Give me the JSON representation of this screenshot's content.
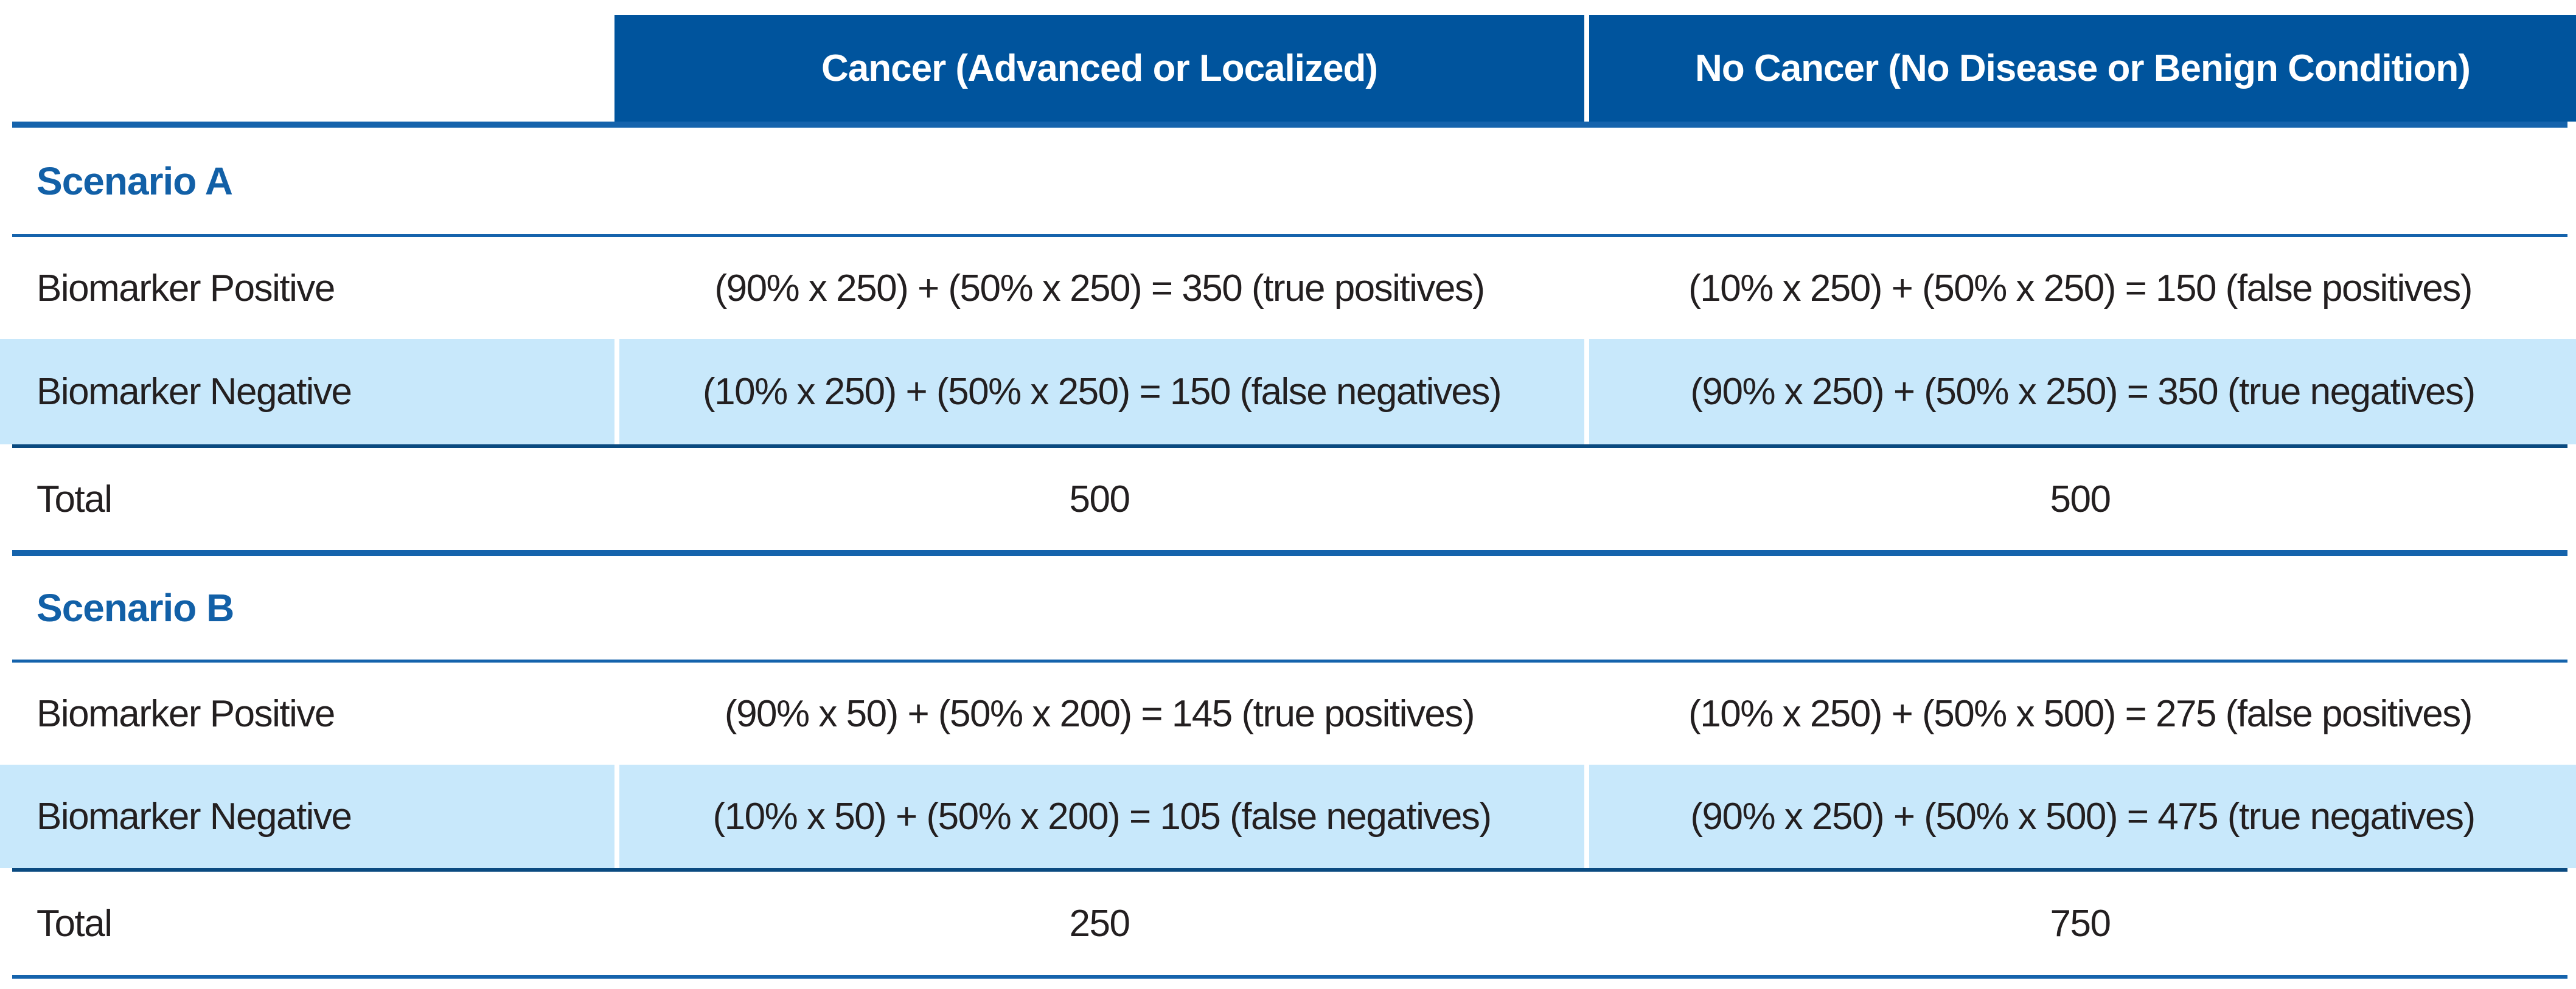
{
  "header": {
    "cancer": "Cancer (Advanced or Localized)",
    "no_cancer": "No Cancer (No Disease or Benign Condition)"
  },
  "scenarios": [
    {
      "title": "Scenario A",
      "positive": {
        "label": "Biomarker Positive",
        "cancer": "(90% x 250) + (50% x 250) = 350 (true positives)",
        "no_cancer": "(10% x 250) + (50% x 250) = 150 (false positives)"
      },
      "negative": {
        "label": "Biomarker Negative",
        "cancer": "(10% x 250) + (50% x 250) = 150 (false negatives)",
        "no_cancer": "(90% x 250) + (50% x 250) = 350 (true negatives)"
      },
      "total": {
        "label": "Total",
        "cancer": "500",
        "no_cancer": "500"
      }
    },
    {
      "title": "Scenario B",
      "positive": {
        "label": "Biomarker Positive",
        "cancer": "(90% x 50) + (50% x 200) = 145 (true positives)",
        "no_cancer": "(10% x 250) + (50% x 500) = 275 (false positives)"
      },
      "negative": {
        "label": "Biomarker Negative",
        "cancer": "(10% x 50) + (50% x 200) = 105 (false negatives)",
        "no_cancer": "(90% x 250) + (50% x 500) = 475 (true negatives)"
      },
      "total": {
        "label": "Total",
        "cancer": "250",
        "no_cancer": "750"
      }
    }
  ],
  "colors": {
    "header_background": "#00549D",
    "header_text": "#FFFFFF",
    "rule_blue": "#1563AC",
    "rule_dark_blue": "#0A4A80",
    "scenario_title_blue": "#1260A7",
    "highlight_row_light_blue": "#C8E8FB",
    "body_text": "#231F20"
  }
}
